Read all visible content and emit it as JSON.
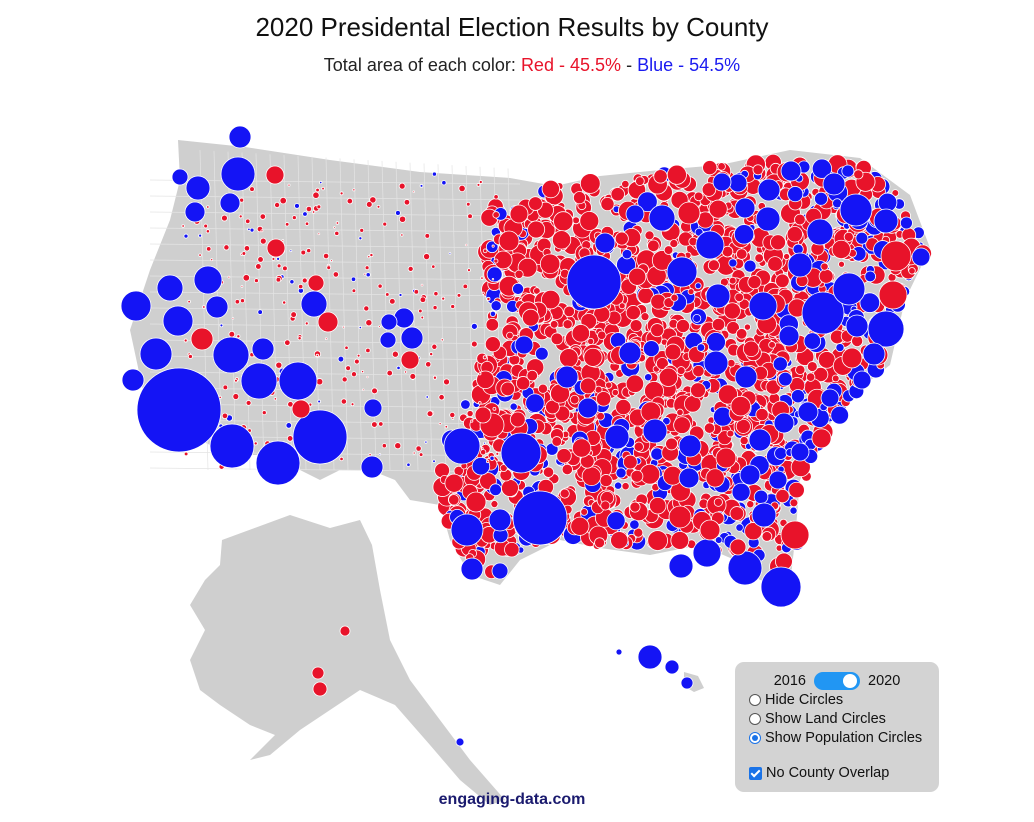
{
  "title": "2020 Presidental Election Results by County",
  "subtitle": {
    "prefix": "Total area of each color:",
    "red_label": "Red",
    "red_pct": "45.5%",
    "blue_label": "Blue",
    "blue_pct": "54.5%",
    "dash": "-"
  },
  "colors": {
    "red": "#e8132a",
    "blue": "#1414f5",
    "land": "#cfcfcf",
    "panel": "#d3d3d3",
    "toggle": "#2196f3"
  },
  "controls": {
    "year_left": "2016",
    "year_right": "2020",
    "selected_year": "2020",
    "options": [
      {
        "label": "Hide Circles",
        "selected": false
      },
      {
        "label": "Show Land Circles",
        "selected": false
      },
      {
        "label": "Show Population Circles",
        "selected": true
      }
    ],
    "no_overlap_label": "No County Overlap",
    "no_overlap_checked": true
  },
  "credit": "engaging-data.com"
}
